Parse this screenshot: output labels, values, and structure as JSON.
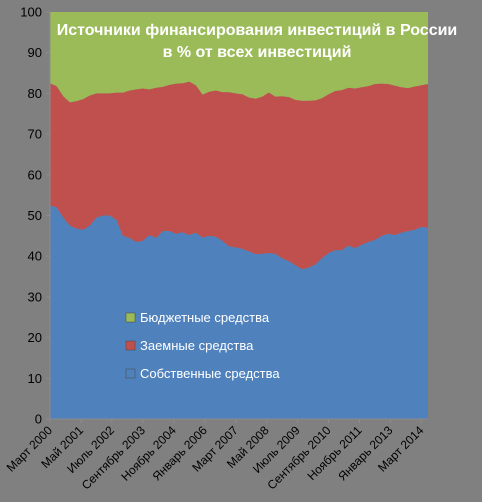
{
  "chart_data": {
    "type": "area",
    "title_lines": [
      "Источники финансирования инвестиций в России",
      "в % от всех инвестиций"
    ],
    "xlabel": "",
    "ylabel": "",
    "ylim": [
      0,
      100
    ],
    "yticks": [
      0,
      10,
      20,
      30,
      40,
      50,
      60,
      70,
      80,
      90,
      100
    ],
    "x_tick_labels": [
      "Март 2000",
      "Май 2001",
      "Июль 2002",
      "Сентябрь 2003",
      "Ноябрь 2004",
      "Январь 2006",
      "Март 2007",
      "Май 2008",
      "Июль 2009",
      "Сентябрь 2010",
      "Ноябрь 2011",
      "Январь 2013",
      "Март 2014"
    ],
    "stacked": true,
    "grid": false,
    "legend_position": "lower-left-inside",
    "series": [
      {
        "name": "Собственные средства",
        "color": "#4f81bd",
        "values": [
          52.5,
          52,
          49.5,
          47.5,
          46.8,
          46.5,
          47.5,
          49.5,
          50,
          50,
          49,
          45,
          44.5,
          43.5,
          43.8,
          45.2,
          44.5,
          46.2,
          46.2,
          45.5,
          45.9,
          45.2,
          45.8,
          44.6,
          45,
          44.8,
          43.8,
          42.4,
          42.2,
          41.8,
          41.2,
          40.5,
          40.6,
          40.8,
          40.6,
          39.5,
          38.8,
          37.8,
          36.8,
          37.2,
          38,
          39.5,
          40.8,
          41.5,
          41.5,
          42.6,
          42,
          42.8,
          43.5,
          44,
          45,
          45.5,
          45.2,
          45.8,
          46.2,
          46.5,
          47.2,
          47
        ]
      },
      {
        "name": "Заемные средства",
        "color": "#c0504d",
        "values": [
          30,
          29.8,
          29.8,
          30.3,
          31.3,
          32.1,
          32,
          30.5,
          30,
          30,
          31.2,
          35.2,
          36.2,
          37.5,
          37.4,
          35.8,
          36.9,
          35.4,
          35.9,
          36.9,
          36.6,
          37.7,
          36.2,
          35.1,
          35.4,
          35.9,
          36.5,
          37.9,
          37.8,
          38,
          37.8,
          38.2,
          38.6,
          39.4,
          38.6,
          39.8,
          40.3,
          40.6,
          41.4,
          41,
          40.3,
          39.3,
          39,
          39.1,
          39.3,
          38.8,
          39.2,
          38.7,
          38.3,
          38.3,
          37.4,
          36.8,
          36.7,
          35.7,
          35.1,
          35.2,
          34.8,
          35.3
        ]
      },
      {
        "name": "Бюджетные средства",
        "color": "#9bbb59",
        "values": [
          17.5,
          18.2,
          20.7,
          22.2,
          21.9,
          21.4,
          20.5,
          20,
          20,
          20,
          19.8,
          19.8,
          19.3,
          19,
          18.8,
          19,
          18.6,
          18.4,
          17.9,
          17.6,
          17.5,
          17.1,
          18,
          20.3,
          19.6,
          19.3,
          19.7,
          19.7,
          20,
          20.2,
          21,
          21.3,
          20.8,
          19.8,
          20.8,
          20.7,
          20.9,
          21.6,
          21.8,
          21.8,
          21.7,
          21.2,
          20.2,
          19.4,
          19.2,
          18.6,
          18.8,
          18.5,
          18.2,
          17.7,
          17.6,
          17.7,
          18.1,
          18.5,
          18.7,
          18.3,
          18,
          17.7
        ]
      }
    ]
  }
}
